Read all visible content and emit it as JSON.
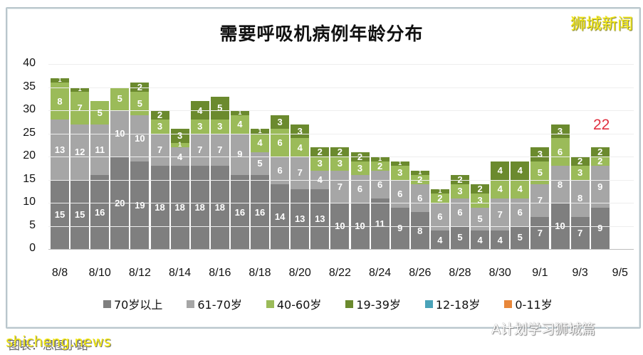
{
  "title": "需要呼吸机病例年龄分布",
  "brand": "狮城新闻",
  "watermark_left": "shicheng.news",
  "watermark_right": "A计划学习狮城篇",
  "source_text": "图表：思图小路",
  "annotation": "22",
  "colors": {
    "70plus": "#7f7f7f",
    "61-70": "#a6a6a6",
    "40-60": "#9bbb59",
    "19-39": "#6b8a2e",
    "12-18": "#4aa3b9",
    "0-11": "#e8873a"
  },
  "chart_data": {
    "type": "bar",
    "stacked": true,
    "title": "需要呼吸机病例年龄分布",
    "xlabel": "",
    "ylabel": "",
    "ylim": [
      0,
      40
    ],
    "yticks": [
      0,
      5,
      10,
      15,
      20,
      25,
      30,
      35,
      40
    ],
    "xtick_labels": [
      "8/8",
      "8/10",
      "8/12",
      "8/14",
      "8/16",
      "8/18",
      "8/20",
      "8/22",
      "8/24",
      "8/26",
      "8/28",
      "8/30",
      "9/1",
      "9/3",
      "9/5"
    ],
    "categories": [
      "8/8",
      "8/9",
      "8/10",
      "8/11",
      "8/12",
      "8/13",
      "8/14",
      "8/15",
      "8/16",
      "8/17",
      "8/18",
      "8/19",
      "8/20",
      "8/21",
      "8/22",
      "8/23",
      "8/24",
      "8/25",
      "8/26",
      "8/27",
      "8/28",
      "8/29",
      "8/30",
      "8/31",
      "9/1",
      "9/2",
      "9/3",
      "9/4"
    ],
    "series": [
      {
        "name": "70岁以上",
        "values": [
          15,
          15,
          16,
          20,
          19,
          18,
          18,
          18,
          18,
          16,
          16,
          14,
          13,
          13,
          10,
          10,
          11,
          9,
          8,
          4,
          5,
          4,
          4,
          5,
          7,
          10,
          7,
          9
        ]
      },
      {
        "name": "61-70岁",
        "values": [
          13,
          12,
          11,
          10,
          10,
          7,
          4,
          7,
          7,
          9,
          5,
          6,
          7,
          4,
          7,
          6,
          6,
          6,
          6,
          6,
          6,
          5,
          7,
          6,
          7,
          8,
          8,
          9
        ]
      },
      {
        "name": "40-60岁",
        "values": [
          8,
          7,
          5,
          5,
          5,
          3,
          1,
          3,
          3,
          4,
          4,
          6,
          4,
          3,
          3,
          3,
          2,
          3,
          2,
          2,
          3,
          3,
          4,
          4,
          5,
          6,
          3,
          2
        ]
      },
      {
        "name": "19-39岁",
        "values": [
          1,
          1,
          0,
          0,
          2,
          2,
          3,
          4,
          5,
          1,
          1,
          3,
          3,
          2,
          2,
          2,
          1,
          1,
          1,
          1,
          2,
          2,
          4,
          4,
          3,
          3,
          2,
          2
        ]
      },
      {
        "name": "12-18岁",
        "values": [
          0,
          0,
          0,
          0,
          0,
          0,
          0,
          0,
          0,
          0,
          0,
          0,
          0,
          0,
          0,
          0,
          0,
          0,
          0,
          0,
          0,
          0,
          0,
          0,
          0,
          0,
          0,
          0
        ]
      },
      {
        "name": "0-11岁",
        "values": [
          0,
          0,
          0,
          0,
          0,
          0,
          0,
          0,
          0,
          0,
          0,
          0,
          0,
          0,
          0,
          0,
          0,
          0,
          0,
          0,
          0,
          0,
          0,
          0,
          0,
          0,
          0,
          0
        ]
      }
    ],
    "annotations": [
      {
        "text": "22",
        "at": "9/4",
        "color": "#e03040"
      }
    ],
    "legend_position": "bottom",
    "grid": true
  }
}
